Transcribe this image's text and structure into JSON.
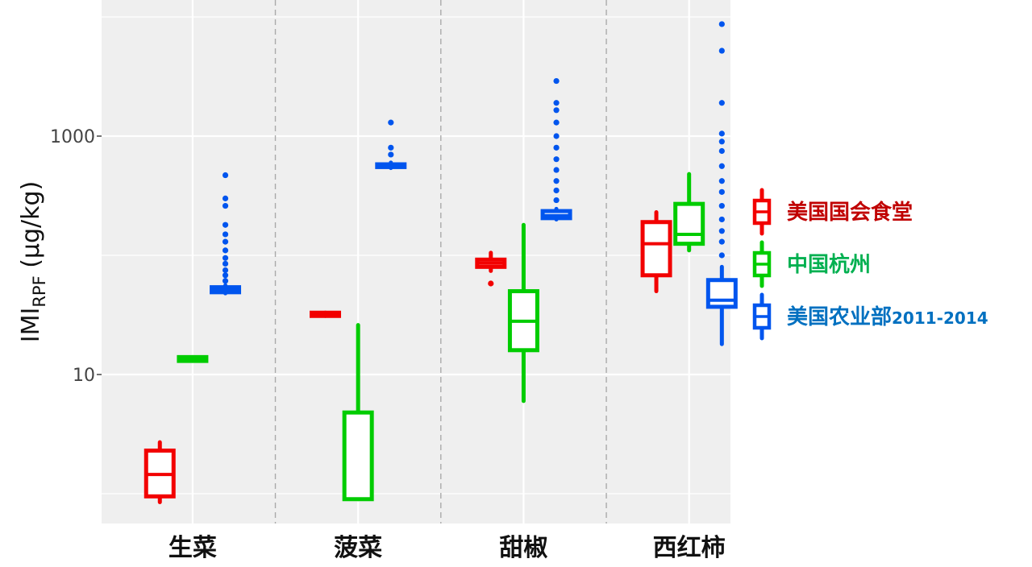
{
  "chart_data": {
    "type": "box",
    "y_scale": "log10",
    "ylim": [
      1,
      10000
    ],
    "y_ticks": [
      {
        "value": 10,
        "label": "10"
      },
      {
        "value": 1000,
        "label": "1000"
      }
    ],
    "ylabel": {
      "main": "IMI",
      "sub": "RPF",
      "unit": " (μg/kg)"
    },
    "categories": [
      "生菜",
      "菠菜",
      "甜椒",
      "西红柿"
    ],
    "grid": true,
    "legend_position": "right",
    "series": [
      {
        "name": "美国国会食堂",
        "name_suffix": "",
        "color": "#f20000",
        "legend_text_color": "#c00000",
        "boxes": [
          {
            "min": 0.85,
            "q1": 0.95,
            "median": 1.45,
            "q3": 2.3,
            "max": 2.7,
            "outliers": []
          },
          {
            "min": 31,
            "q1": 31,
            "median": 31,
            "q3": 33,
            "max": 33,
            "outliers": []
          },
          {
            "min": 74,
            "q1": 80,
            "median": 86,
            "q3": 92,
            "max": 105,
            "outliers": [
              58
            ]
          },
          {
            "min": 50,
            "q1": 68,
            "median": 125,
            "q3": 190,
            "max": 230,
            "outliers": []
          }
        ]
      },
      {
        "name": "中国杭州",
        "name_suffix": "",
        "color": "#00cc00",
        "legend_text_color": "#00b050",
        "boxes": [
          {
            "min": 13,
            "q1": 13,
            "median": 13,
            "q3": 14,
            "max": 14,
            "outliers": []
          },
          {
            "min": 0.9,
            "q1": 0.9,
            "median": 0.9,
            "q3": 4.8,
            "max": 26,
            "outliers": []
          },
          {
            "min": 6,
            "q1": 16,
            "median": 28,
            "q3": 50,
            "max": 180,
            "outliers": []
          },
          {
            "min": 110,
            "q1": 125,
            "median": 150,
            "q3": 270,
            "max": 480,
            "outliers": []
          }
        ]
      },
      {
        "name": "美国农业部",
        "name_suffix": "2011-2014",
        "color": "#0055ee",
        "legend_text_color": "#0070c0",
        "boxes": [
          {
            "min": 48,
            "q1": 49,
            "median": 51,
            "q3": 54,
            "max": 56,
            "outliers": [
              61,
              68,
              75,
              85,
              95,
              110,
              130,
              150,
              180,
              260,
              300,
              470
            ]
          },
          {
            "min": 540,
            "q1": 550,
            "median": 560,
            "q3": 580,
            "max": 600,
            "outliers": [
              700,
              800,
              1300
            ]
          },
          {
            "min": 200,
            "q1": 205,
            "median": 215,
            "q3": 235,
            "max": 245,
            "outliers": [
              290,
              350,
              420,
              520,
              640,
              800,
              1000,
              1300,
              1650,
              1900,
              2900
            ]
          },
          {
            "min": 18,
            "q1": 37,
            "median": 42,
            "q3": 62,
            "max": 80,
            "outliers": [
              100,
              130,
              160,
              200,
              260,
              340,
              420,
              560,
              750,
              900,
              1050,
              1900,
              5200,
              8700
            ]
          }
        ]
      }
    ]
  }
}
